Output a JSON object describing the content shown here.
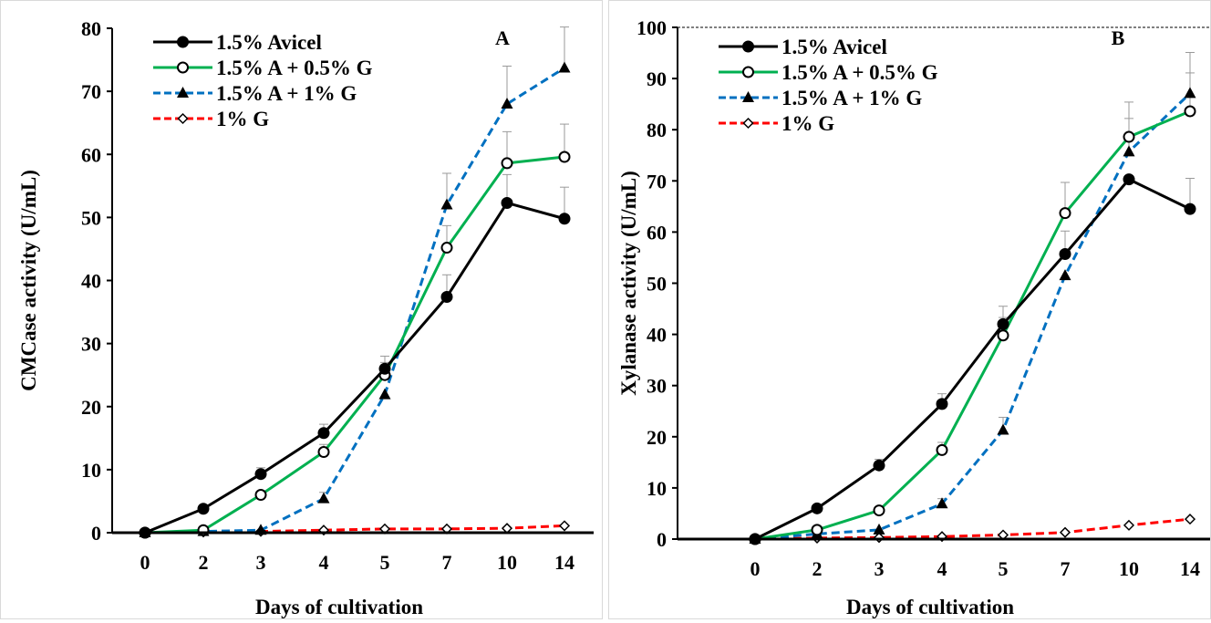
{
  "chart_data": [
    {
      "type": "line",
      "panel_label": "A",
      "xlabel": "Days of cultivation",
      "ylabel": "CMCase activity (U/mL)",
      "categories": [
        "0",
        "2",
        "3",
        "4",
        "5",
        "7",
        "10",
        "14"
      ],
      "ylim": [
        0,
        80
      ],
      "yticks": [
        0,
        10,
        20,
        30,
        40,
        50,
        60,
        70,
        80
      ],
      "grid": false,
      "legend_position": "top-left",
      "series": [
        {
          "name": "1.5% Avicel",
          "color": "#000000",
          "dash": "solid",
          "marker": "filled-circle",
          "values": [
            0,
            3.8,
            9.3,
            15.8,
            26.0,
            37.4,
            52.3,
            49.8
          ],
          "errors": [
            0,
            0,
            1.0,
            1.4,
            2.0,
            3.5,
            4.5,
            5.0
          ]
        },
        {
          "name": "1.5% A + 0.5% G",
          "color": "#00b050",
          "dash": "solid",
          "marker": "open-circle",
          "values": [
            0,
            0.4,
            6.0,
            12.8,
            25.0,
            45.2,
            58.6,
            59.6
          ],
          "errors": [
            0,
            0,
            0,
            1.2,
            2.0,
            3.5,
            5.0,
            5.2
          ]
        },
        {
          "name": "1.5% A + 1% G",
          "color": "#0070c0",
          "dash": "dashed",
          "marker": "filled-triangle",
          "values": [
            0,
            0.2,
            0.4,
            5.4,
            21.9,
            52.0,
            68.0,
            73.7
          ],
          "errors": [
            0,
            0,
            0,
            1.0,
            0,
            5.0,
            6.0,
            6.5
          ]
        },
        {
          "name": "1% G",
          "color": "#ff0000",
          "dash": "dashed",
          "marker": "open-diamond",
          "values": [
            0,
            0.1,
            0.2,
            0.4,
            0.6,
            0.6,
            0.7,
            1.1
          ],
          "errors": [
            0,
            0,
            0,
            0,
            0,
            0,
            0,
            0
          ]
        }
      ]
    },
    {
      "type": "line",
      "panel_label": "B",
      "xlabel": "Days of cultivation",
      "ylabel": "Xylanase activity (U/mL)",
      "categories": [
        "0",
        "2",
        "3",
        "4",
        "5",
        "7",
        "10",
        "14"
      ],
      "ylim": [
        0,
        100
      ],
      "yticks": [
        0,
        10,
        20,
        30,
        40,
        50,
        60,
        70,
        80,
        90,
        100
      ],
      "grid": false,
      "legend_position": "top-left",
      "series": [
        {
          "name": "1.5% Avicel",
          "color": "#000000",
          "dash": "solid",
          "marker": "filled-circle",
          "values": [
            0,
            6.0,
            14.4,
            26.4,
            42.0,
            55.7,
            70.3,
            64.5
          ],
          "errors": [
            0,
            0,
            1.2,
            2.0,
            3.5,
            4.5,
            0,
            6.0
          ]
        },
        {
          "name": "1.5% A + 0.5% G",
          "color": "#00b050",
          "dash": "solid",
          "marker": "open-circle",
          "values": [
            0,
            1.8,
            5.6,
            17.4,
            39.8,
            63.7,
            78.6,
            83.6
          ],
          "errors": [
            0,
            0,
            0,
            1.5,
            3.5,
            6.0,
            6.8,
            11.5
          ]
        },
        {
          "name": "1.5% A + 1% G",
          "color": "#0070c0",
          "dash": "dashed",
          "marker": "filled-triangle",
          "values": [
            0,
            1.0,
            1.8,
            6.9,
            21.3,
            51.5,
            75.7,
            87.1
          ],
          "errors": [
            0,
            0,
            0,
            1.0,
            2.5,
            0,
            6.5,
            4.0
          ]
        },
        {
          "name": "1% G",
          "color": "#ff0000",
          "dash": "dashed",
          "marker": "open-diamond",
          "values": [
            0,
            0.2,
            0.3,
            0.5,
            0.8,
            1.3,
            2.7,
            3.9
          ],
          "errors": [
            0,
            0,
            0,
            0,
            0,
            0,
            0,
            0
          ]
        }
      ]
    }
  ]
}
